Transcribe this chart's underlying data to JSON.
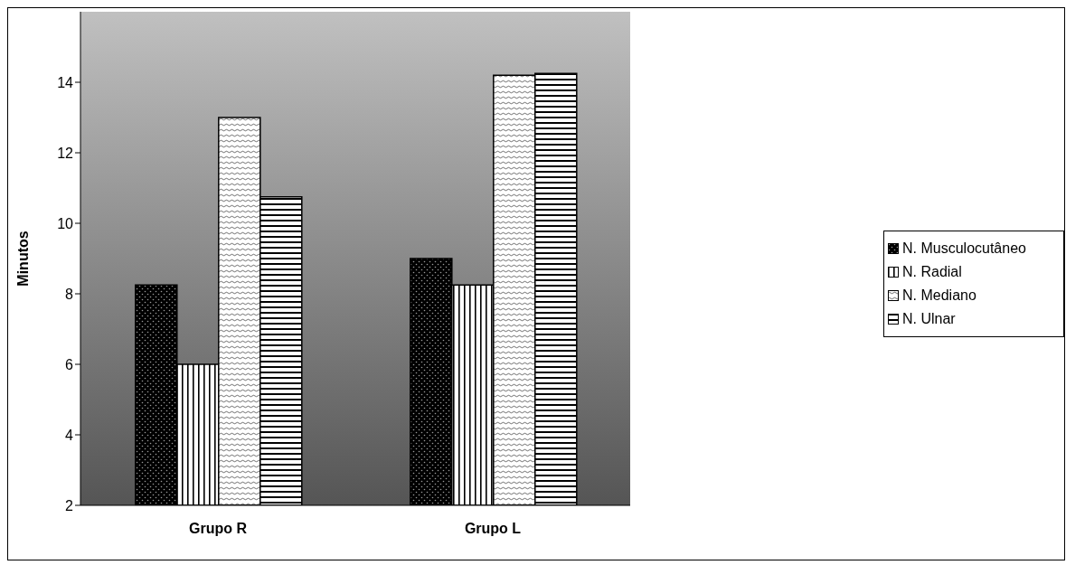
{
  "chart_data": {
    "type": "bar",
    "ylabel": "Minutos",
    "categories": [
      "Grupo R",
      "Grupo L"
    ],
    "series": [
      {
        "name": "N. Musculocutâneo",
        "color": "#000000",
        "values": [
          8.25,
          9
        ]
      },
      {
        "name": "N. Radial",
        "color": "#000000",
        "values": [
          6,
          8.25
        ]
      },
      {
        "name": "N. Mediano",
        "color": "#000000",
        "values": [
          13,
          14.2
        ]
      },
      {
        "name": "N. Ulnar",
        "color": "#000000",
        "values": [
          10.75,
          14.25
        ]
      }
    ],
    "ylim": [
      2,
      16
    ],
    "yticks": [
      2,
      4,
      6,
      8,
      10,
      12,
      14
    ],
    "legend": "right"
  }
}
